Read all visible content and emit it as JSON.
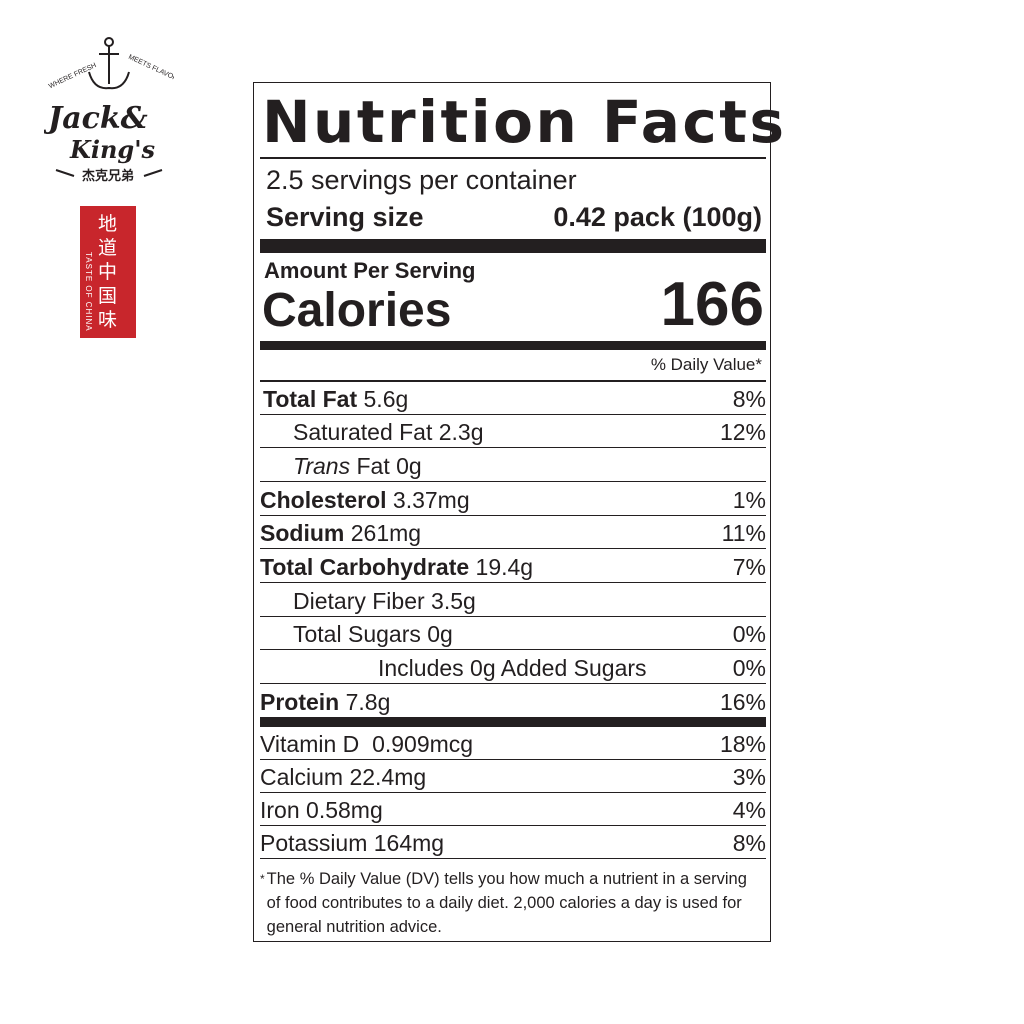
{
  "brand": {
    "logo_text": "Jack & King's",
    "tagline": "WHERE FRESH MEETS FLAVOR",
    "chinese_name": "杰克兄弟",
    "seal_text": "地道中国味",
    "seal_english": "TASTE OF CHINA",
    "seal_color": "#c8262c"
  },
  "label": {
    "title": "Nutrition Facts",
    "servings_per_container": "2.5 servings per container",
    "serving_size_label": "Serving size",
    "serving_size_value": "0.42 pack (100g)",
    "amount_per_serving": "Amount Per Serving",
    "calories_label": "Calories",
    "calories_value": "166",
    "dv_header": "% Daily Value*",
    "nutrients": [
      {
        "name": "Total Fat",
        "amount": "5.6g",
        "dv": "8%"
      },
      {
        "name": "Saturated Fat",
        "amount": "2.3g",
        "dv": "12%"
      },
      {
        "name_italic": "Trans",
        "name": "Fat",
        "amount": "0g",
        "dv": ""
      },
      {
        "name": "Cholesterol",
        "amount": "3.37mg",
        "dv": "1%"
      },
      {
        "name": "Sodium",
        "amount": "261mg",
        "dv": "11%"
      },
      {
        "name": "Total Carbohydrate",
        "amount": "19.4g",
        "dv": "7%"
      },
      {
        "name": "Dietary Fiber",
        "amount": "3.5g",
        "dv": ""
      },
      {
        "name": "Total Sugars",
        "amount": "0g",
        "dv": "0%"
      },
      {
        "name": "Includes 0g Added Sugars",
        "amount": "",
        "dv": "0%"
      },
      {
        "name": "Protein",
        "amount": "7.8g",
        "dv": "16%"
      }
    ],
    "vitamins": [
      {
        "name": "Vitamin D",
        "amount": "0.909mcg",
        "dv": "18%"
      },
      {
        "name": "Calcium",
        "amount": "22.4mg",
        "dv": "3%"
      },
      {
        "name": "Iron",
        "amount": "0.58mg",
        "dv": "4%"
      },
      {
        "name": "Potassium",
        "amount": "164mg",
        "dv": "8%"
      }
    ],
    "footnote_star": "*",
    "footnote": "The % Daily Value (DV) tells you how much a nutrient in a serving of food contributes to a daily diet. 2,000 calories a day is used for general nutrition advice."
  }
}
